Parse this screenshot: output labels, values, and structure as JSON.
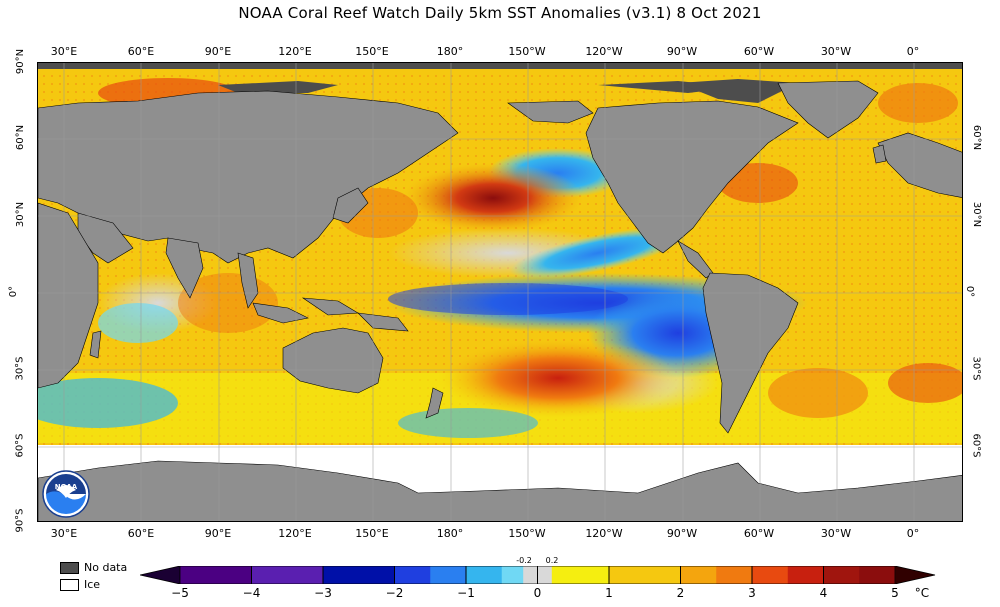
{
  "title": "NOAA Coral Reef Watch Daily 5km SST Anomalies  (v3.1)   8 Oct 2021",
  "map": {
    "lon_labels": [
      "30°E",
      "60°E",
      "90°E",
      "120°E",
      "150°E",
      "180°",
      "150°W",
      "120°W",
      "90°W",
      "60°W",
      "30°W",
      "0°"
    ],
    "lat_labels_left": [
      "90°N",
      "60°N",
      "30°N",
      "0°",
      "30°S",
      "60°S",
      "90°S"
    ],
    "lat_labels_right": [
      "60°N",
      "30°N",
      "0°",
      "30°S",
      "60°S"
    ],
    "colors": {
      "land": "#8f8f8f",
      "no_data": "#4d4d4d",
      "ice": "#ffffff",
      "neutral": "#d9d9d9"
    },
    "logo_text": "NOAA"
  },
  "legend": {
    "no_data_label": "No data",
    "ice_label": "Ice"
  },
  "colorbar": {
    "tick_labels": [
      "−5",
      "−4",
      "−3",
      "−2",
      "−1",
      "0",
      "1",
      "2",
      "3",
      "4",
      "5"
    ],
    "small_labels": [
      "-0.2",
      "0.2"
    ],
    "unit": "°C",
    "range": [
      -5,
      5
    ],
    "colors": [
      "#1a0033",
      "#4b0082",
      "#5a1fb0",
      "#0010a8",
      "#1f3fe0",
      "#2a7ff0",
      "#35b5ee",
      "#70d8f4",
      "#d9d9d9",
      "#f5ee10",
      "#f5c810",
      "#f4a50e",
      "#f07a10",
      "#e84a10",
      "#c8200f",
      "#8b0d0d",
      "#300000"
    ]
  }
}
